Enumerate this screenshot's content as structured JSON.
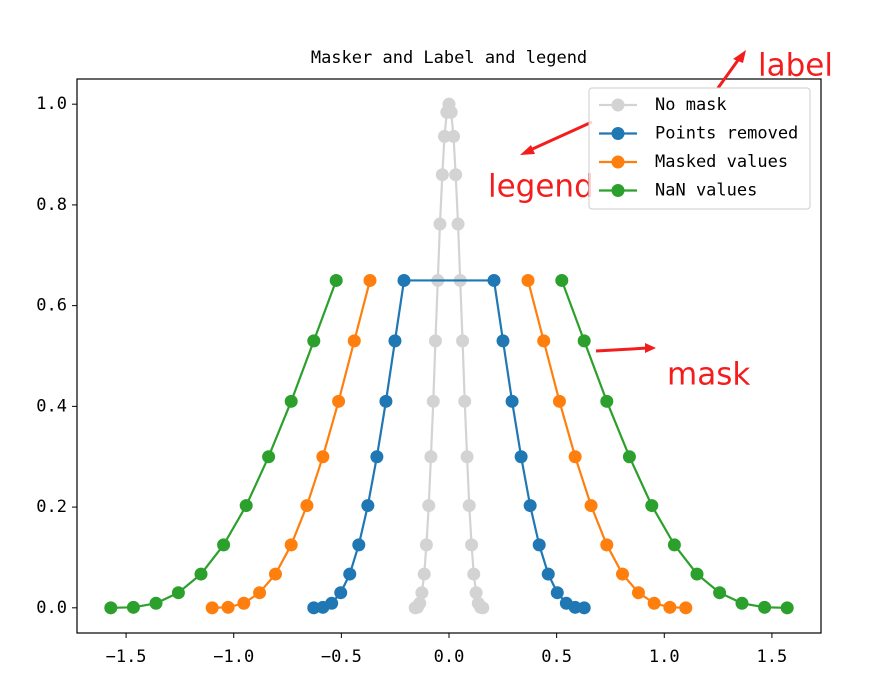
{
  "chart_data": {
    "type": "line",
    "title": "Masker and Label and legend",
    "xlim": [
      -1.728,
      1.728
    ],
    "ylim": [
      -0.05,
      1.05
    ],
    "xticks": [
      {
        "value": -1.5,
        "label": "−1.5"
      },
      {
        "value": -1.0,
        "label": "−1.0"
      },
      {
        "value": -0.5,
        "label": "−0.5"
      },
      {
        "value": 0.0,
        "label": "0.0"
      },
      0.5,
      {
        "value": 1.0,
        "label": "1.0"
      },
      1.5
    ],
    "yticks": [
      {
        "value": 0.0,
        "label": "0.0"
      },
      0.2,
      0.4,
      0.6,
      0.8,
      {
        "value": 1.0,
        "label": "1.0"
      }
    ],
    "legend": "upper right",
    "series": [
      {
        "name": "No mask",
        "color": "#d3d3d3",
        "x": [
          -0.157,
          -0.147,
          -0.136,
          -0.126,
          -0.115,
          -0.105,
          -0.094,
          -0.084,
          -0.073,
          -0.063,
          -0.052,
          -0.042,
          -0.031,
          -0.021,
          -0.01,
          0,
          0.01,
          0.021,
          0.031,
          0.042,
          0.052,
          0.063,
          0.073,
          0.084,
          0.094,
          0.105,
          0.115,
          0.126,
          0.136,
          0.147,
          0.157
        ],
        "values": [
          0,
          0.001,
          0.009,
          0.03,
          0.067,
          0.125,
          0.203,
          0.3,
          0.41,
          0.53,
          0.65,
          0.762,
          0.86,
          0.936,
          0.984,
          1,
          0.984,
          0.936,
          0.86,
          0.762,
          0.65,
          0.53,
          0.41,
          0.3,
          0.203,
          0.125,
          0.067,
          0.03,
          0.009,
          0.001,
          0
        ]
      },
      {
        "name": "Points removed",
        "color": "#1f77b4",
        "x": [
          -0.628,
          -0.586,
          -0.545,
          -0.503,
          -0.461,
          -0.419,
          -0.377,
          -0.335,
          -0.293,
          -0.251,
          -0.209,
          0.209,
          0.251,
          0.293,
          0.335,
          0.377,
          0.419,
          0.461,
          0.503,
          0.545,
          0.586,
          0.628
        ],
        "values": [
          0,
          0.001,
          0.009,
          0.03,
          0.067,
          0.125,
          0.203,
          0.3,
          0.41,
          0.53,
          0.65,
          0.65,
          0.53,
          0.41,
          0.3,
          0.203,
          0.125,
          0.067,
          0.03,
          0.009,
          0.001,
          0
        ]
      },
      {
        "name": "Masked values",
        "color": "#ff7f0e",
        "x": [
          -1.1,
          -1.026,
          -0.953,
          -0.88,
          -0.806,
          -0.733,
          -0.66,
          -0.586,
          -0.513,
          -0.44,
          -0.367,
          -0.293,
          -0.22,
          -0.147,
          -0.073,
          0,
          0.073,
          0.147,
          0.22,
          0.293,
          0.367,
          0.44,
          0.513,
          0.586,
          0.66,
          0.733,
          0.806,
          0.88,
          0.953,
          1.026,
          1.1
        ],
        "values": [
          0,
          0.001,
          0.009,
          0.03,
          0.067,
          0.125,
          0.203,
          0.3,
          0.41,
          0.53,
          0.65,
          null,
          null,
          null,
          null,
          null,
          null,
          null,
          null,
          null,
          0.65,
          0.53,
          0.41,
          0.3,
          0.203,
          0.125,
          0.067,
          0.03,
          0.009,
          0.001,
          0
        ]
      },
      {
        "name": "NaN values",
        "color": "#2ca02c",
        "x": [
          -1.571,
          -1.466,
          -1.361,
          -1.257,
          -1.152,
          -1.047,
          -0.942,
          -0.838,
          -0.733,
          -0.628,
          -0.524,
          -0.419,
          -0.314,
          -0.209,
          -0.105,
          0,
          0.105,
          0.209,
          0.314,
          0.419,
          0.524,
          0.628,
          0.733,
          0.838,
          0.942,
          1.047,
          1.152,
          1.257,
          1.361,
          1.466,
          1.571
        ],
        "values": [
          0,
          0.001,
          0.009,
          0.03,
          0.067,
          0.125,
          0.203,
          0.3,
          0.41,
          0.53,
          0.65,
          null,
          null,
          null,
          null,
          null,
          null,
          null,
          null,
          null,
          0.65,
          0.53,
          0.41,
          0.3,
          0.203,
          0.125,
          0.067,
          0.03,
          0.009,
          0.001,
          0
        ]
      }
    ],
    "annotations": [
      "label",
      "legend",
      "mask"
    ]
  }
}
